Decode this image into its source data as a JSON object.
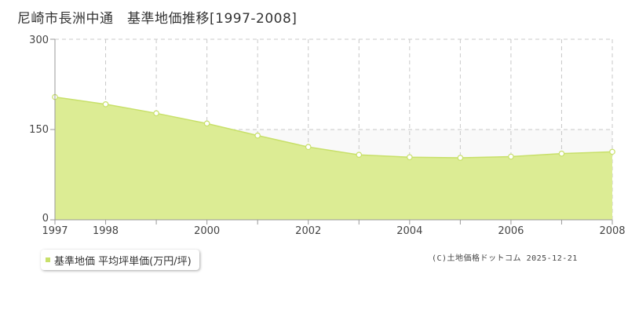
{
  "chart_data": {
    "type": "area",
    "title": "尼崎市長洲中通　基準地価推移[1997-2008]",
    "x": [
      1997,
      1998,
      1999,
      2000,
      2001,
      2002,
      2003,
      2004,
      2005,
      2006,
      2007,
      2008
    ],
    "x_tick_labels": [
      "1997",
      "1998",
      "2000",
      "2002",
      "2004",
      "2006",
      "2008"
    ],
    "y_tick_labels": [
      "0",
      "150",
      "300"
    ],
    "ylim": [
      0,
      300
    ],
    "series": [
      {
        "name": "基準地価 平均坪単価(万円/坪)",
        "values": [
          204,
          192,
          177,
          160,
          140,
          121,
          108,
          104,
          103,
          105,
          110,
          113
        ]
      }
    ],
    "grid": true,
    "legend_position": "bottom-left",
    "colors": {
      "fill": "#dcec94",
      "line": "#c8e06a",
      "band": "#f9f9f9",
      "grid": "#c8c8c8"
    }
  },
  "footer": {
    "credit": "(C)土地価格ドットコム 2025-12-21"
  }
}
